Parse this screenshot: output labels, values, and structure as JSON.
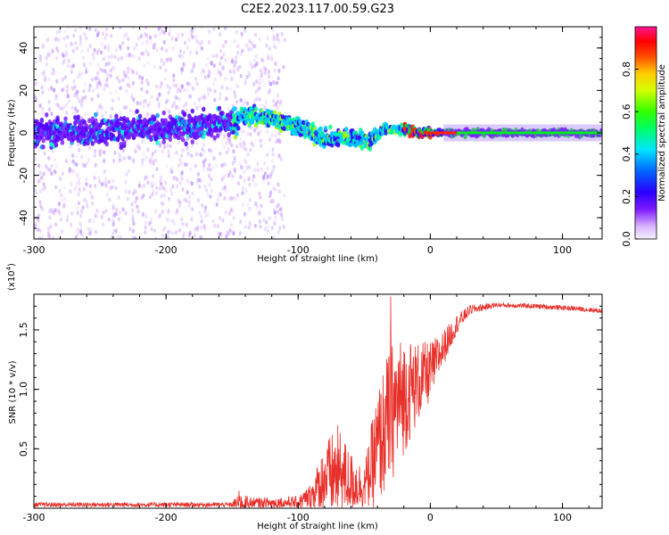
{
  "chart_data": [
    {
      "type": "heatmap",
      "title": "C2E2.2023.117.00.59.G23",
      "xlabel": "Height of straight line (km)",
      "ylabel": "Frequency (Hz)",
      "xlim": [
        -300,
        130
      ],
      "ylim": [
        -50,
        50
      ],
      "x_ticks": [
        -300,
        -200,
        -100,
        0,
        100
      ],
      "y_ticks": [
        -40,
        -20,
        0,
        20,
        40
      ],
      "colorbar": {
        "label": "Normalized spectral amplitude",
        "range": [
          0,
          1
        ],
        "ticks": [
          "0.0",
          "0.2",
          "0.4",
          "0.6",
          "0.8"
        ],
        "tick_values": [
          0,
          0.2,
          0.4,
          0.6,
          0.8
        ]
      },
      "dominant_frequency_track": [
        {
          "x": -300,
          "y": 0
        },
        {
          "x": -250,
          "y": 1
        },
        {
          "x": -200,
          "y": 2
        },
        {
          "x": -150,
          "y": 5
        },
        {
          "x": -140,
          "y": 8
        },
        {
          "x": -120,
          "y": 7
        },
        {
          "x": -100,
          "y": 3
        },
        {
          "x": -80,
          "y": -3
        },
        {
          "x": -60,
          "y": -2
        },
        {
          "x": -45,
          "y": -4
        },
        {
          "x": -35,
          "y": 2
        },
        {
          "x": -25,
          "y": 1
        },
        {
          "x": -20,
          "y": 2
        },
        {
          "x": -10,
          "y": 0
        },
        {
          "x": 0,
          "y": 0
        },
        {
          "x": 50,
          "y": 0
        },
        {
          "x": 100,
          "y": 0
        },
        {
          "x": 130,
          "y": 0
        }
      ],
      "grid": false
    },
    {
      "type": "line",
      "title": "",
      "xlabel": "Height of straight line (km)",
      "ylabel": "SNR (10 * v/v)",
      "y_multiplier": "(x10",
      "y_multiplier_exp": "4",
      "y_multiplier_close": ")",
      "xlim": [
        -300,
        130
      ],
      "ylim": [
        0,
        1.8
      ],
      "x_ticks": [
        -300,
        -200,
        -100,
        0,
        100
      ],
      "y_ticks": [
        0.5,
        1.0,
        1.5
      ],
      "y_tick_labels": [
        "0.5",
        "1.0",
        "1.5"
      ],
      "series_color": "#e8302a",
      "envelope": [
        {
          "x": -300,
          "mean": 0.03,
          "amp": 0.02
        },
        {
          "x": -150,
          "mean": 0.03,
          "amp": 0.02
        },
        {
          "x": -145,
          "mean": 0.05,
          "amp": 0.1
        },
        {
          "x": -135,
          "mean": 0.04,
          "amp": 0.05
        },
        {
          "x": -100,
          "mean": 0.05,
          "amp": 0.05
        },
        {
          "x": -90,
          "mean": 0.1,
          "amp": 0.12
        },
        {
          "x": -80,
          "mean": 0.25,
          "amp": 0.3
        },
        {
          "x": -70,
          "mean": 0.3,
          "amp": 0.4
        },
        {
          "x": -60,
          "mean": 0.22,
          "amp": 0.25
        },
        {
          "x": -50,
          "mean": 0.18,
          "amp": 0.18
        },
        {
          "x": -40,
          "mean": 0.5,
          "amp": 0.5
        },
        {
          "x": -30,
          "mean": 0.8,
          "amp": 0.6
        },
        {
          "x": -20,
          "mean": 0.95,
          "amp": 0.5
        },
        {
          "x": -10,
          "mean": 1.05,
          "amp": 0.35
        },
        {
          "x": 0,
          "mean": 1.15,
          "amp": 0.25
        },
        {
          "x": 10,
          "mean": 1.35,
          "amp": 0.15
        },
        {
          "x": 20,
          "mean": 1.55,
          "amp": 0.08
        },
        {
          "x": 30,
          "mean": 1.67,
          "amp": 0.04
        },
        {
          "x": 50,
          "mean": 1.71,
          "amp": 0.02
        },
        {
          "x": 80,
          "mean": 1.7,
          "amp": 0.02
        },
        {
          "x": 110,
          "mean": 1.68,
          "amp": 0.02
        },
        {
          "x": 130,
          "mean": 1.66,
          "amp": 0.02
        }
      ],
      "peak": {
        "x": -30,
        "y": 1.78
      },
      "grid": false
    }
  ],
  "colors": {
    "axis": "#000000",
    "snr_line": "#e8302a"
  }
}
